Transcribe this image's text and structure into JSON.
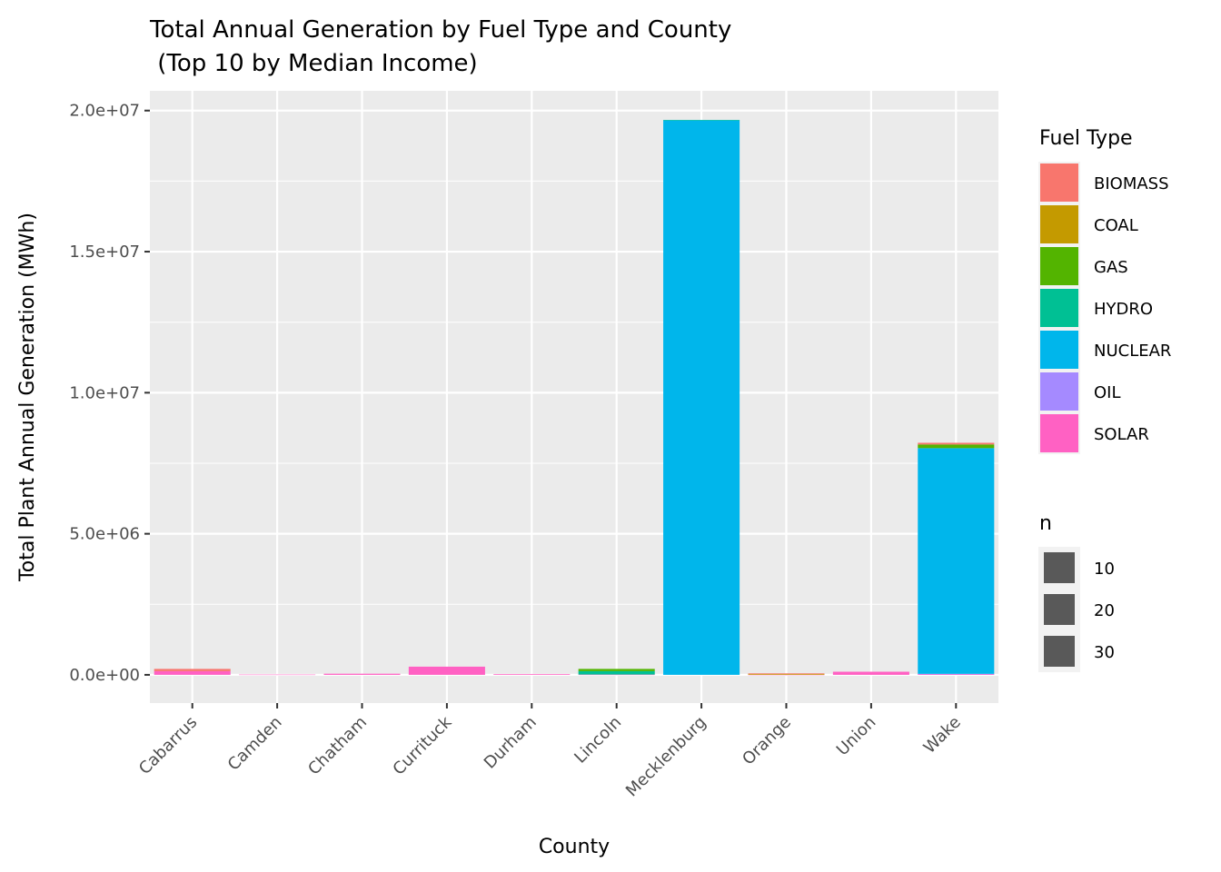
{
  "chart_data": {
    "type": "bar",
    "stacked": true,
    "title_line1": "Total Annual Generation by Fuel Type and County",
    "title_line2": " (Top 10 by Median Income)",
    "xlabel": "County",
    "ylabel": "Total Plant Annual Generation (MWh)",
    "ylim": [
      -1000000,
      20700000
    ],
    "yticks": [
      {
        "value": 0,
        "label": "0.0e+00"
      },
      {
        "value": 5000000,
        "label": "5.0e+06"
      },
      {
        "value": 10000000,
        "label": "1.0e+07"
      },
      {
        "value": 15000000,
        "label": "1.5e+07"
      },
      {
        "value": 20000000,
        "label": "2.0e+07"
      }
    ],
    "categories": [
      "Cabarrus",
      "Camden",
      "Chatham",
      "Currituck",
      "Durham",
      "Lincoln",
      "Mecklenburg",
      "Orange",
      "Union",
      "Wake"
    ],
    "series": [
      {
        "name": "SOLAR",
        "color": "#FF61C3",
        "values": [
          130000,
          10000,
          40000,
          290000,
          25000,
          10000,
          0,
          5000,
          110000,
          30000
        ]
      },
      {
        "name": "OIL",
        "color": "#A58AFF",
        "values": [
          0,
          0,
          0,
          0,
          0,
          0,
          0,
          0,
          0,
          5000
        ]
      },
      {
        "name": "NUCLEAR",
        "color": "#00B6EB",
        "values": [
          0,
          0,
          0,
          0,
          0,
          0,
          19650000,
          0,
          0,
          8000000
        ]
      },
      {
        "name": "HYDRO",
        "color": "#00C094",
        "values": [
          0,
          0,
          0,
          0,
          0,
          120000,
          20000,
          0,
          0,
          0
        ]
      },
      {
        "name": "GAS",
        "color": "#53B400",
        "values": [
          0,
          0,
          0,
          0,
          0,
          80000,
          0,
          0,
          0,
          130000
        ]
      },
      {
        "name": "COAL",
        "color": "#C49A00",
        "values": [
          0,
          0,
          0,
          0,
          0,
          0,
          0,
          30000,
          0,
          0
        ]
      },
      {
        "name": "BIOMASS",
        "color": "#F8766D",
        "values": [
          80000,
          0,
          0,
          0,
          0,
          0,
          0,
          20000,
          0,
          60000
        ]
      }
    ],
    "legend_fill": {
      "title": "Fuel Type",
      "entries": [
        {
          "label": "BIOMASS",
          "color": "#F8766D"
        },
        {
          "label": "COAL",
          "color": "#C49A00"
        },
        {
          "label": "GAS",
          "color": "#53B400"
        },
        {
          "label": "HYDRO",
          "color": "#00C094"
        },
        {
          "label": "NUCLEAR",
          "color": "#00B6EB"
        },
        {
          "label": "OIL",
          "color": "#A58AFF"
        },
        {
          "label": "SOLAR",
          "color": "#FF61C3"
        }
      ]
    },
    "legend_n": {
      "title": "n",
      "entries": [
        "10",
        "20",
        "30"
      ],
      "color": "#595959"
    },
    "grid": true,
    "legend_position": "right",
    "panel_color": "#EBEBEB"
  }
}
